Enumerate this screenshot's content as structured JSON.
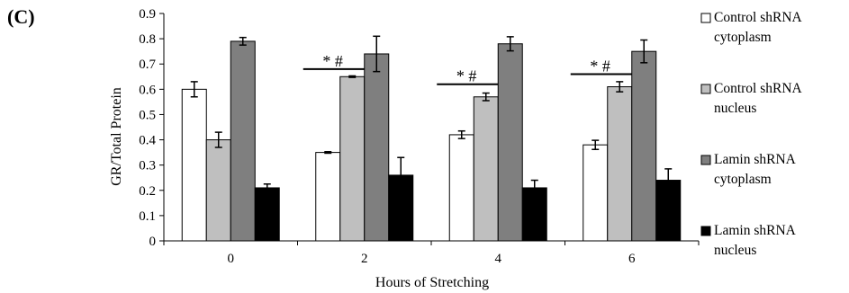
{
  "panel_label": "(C)",
  "chart_data": {
    "type": "bar",
    "title": "",
    "xlabel": "Hours of Stretching",
    "ylabel": "GR/Total Protein",
    "ylim": [
      0,
      0.9
    ],
    "yticks": [
      "0",
      "0.1",
      "0.2",
      "0.3",
      "0.4",
      "0.5",
      "0.6",
      "0.7",
      "0.8",
      "0.9"
    ],
    "grid": false,
    "legend_position": "right",
    "categories": [
      "0",
      "2",
      "4",
      "6"
    ],
    "series": [
      {
        "name": "Control shRNA cytoplasm",
        "legend_lines": [
          "Control shRNA",
          "cytoplasm"
        ],
        "color": "#ffffff",
        "values": [
          0.6,
          0.35,
          0.42,
          0.38
        ],
        "errors": [
          0.03,
          0.003,
          0.015,
          0.018
        ]
      },
      {
        "name": "Control shRNA nucleus",
        "legend_lines": [
          "Control shRNA",
          "nucleus"
        ],
        "color": "#bfbfbf",
        "values": [
          0.4,
          0.65,
          0.57,
          0.61
        ],
        "errors": [
          0.03,
          0.003,
          0.015,
          0.02
        ]
      },
      {
        "name": "Lamin shRNA cytoplasm",
        "legend_lines": [
          "Lamin shRNA",
          "cytoplasm"
        ],
        "color": "#7f7f7f",
        "values": [
          0.79,
          0.74,
          0.78,
          0.75
        ],
        "errors": [
          0.015,
          0.07,
          0.028,
          0.045
        ]
      },
      {
        "name": "Lamin shRNA nucleus",
        "legend_lines": [
          "Lamin shRNA",
          "nucleus"
        ],
        "color": "#000000",
        "values": [
          0.21,
          0.26,
          0.21,
          0.24
        ],
        "errors": [
          0.015,
          0.07,
          0.03,
          0.045
        ]
      }
    ],
    "annotations": [
      {
        "category": "2",
        "text": "* #",
        "y": 0.68
      },
      {
        "category": "4",
        "text": "* #",
        "y": 0.62
      },
      {
        "category": "6",
        "text": "* #",
        "y": 0.66
      }
    ]
  }
}
